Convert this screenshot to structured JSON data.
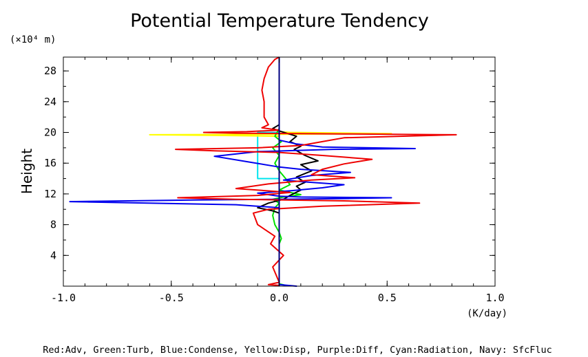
{
  "chart_data": {
    "type": "line",
    "title": "Potential Temperature Tendency",
    "ylabel": "Height",
    "yunits": "(×10⁴ m)",
    "xunits": "(K/day)",
    "xlim": [
      -1.0,
      1.0
    ],
    "ylim": [
      0,
      29.8
    ],
    "xticks": [
      -1.0,
      -0.5,
      0.0,
      0.5,
      1.0
    ],
    "xtick_labels": [
      "-1.0",
      "-0.5",
      "0.0",
      "0.5",
      "1.0"
    ],
    "yticks": [
      4,
      8,
      12,
      16,
      20,
      24,
      28
    ],
    "ytick_labels": [
      "4",
      "8",
      "12",
      "16",
      "20",
      "24",
      "28"
    ],
    "grid": false,
    "legend_text": "Red:Adv, Green:Turb, Blue:Condense, Yellow:Disp, Purple:Diff, Cyan:Radiation, Navy: SfcFluc",
    "series": [
      {
        "name": "Cyan:Radiation",
        "color": "#00e5ee",
        "points": [
          [
            0.0,
            0
          ],
          [
            0.0,
            14.0
          ],
          [
            -0.1,
            14.0
          ],
          [
            -0.1,
            20.0
          ],
          [
            0.0,
            20.0
          ],
          [
            0.0,
            29.8
          ]
        ]
      },
      {
        "name": "Yellow:Disp",
        "color": "#ffff00",
        "points": [
          [
            0.0,
            0
          ],
          [
            0.0,
            19.5
          ],
          [
            -0.25,
            19.6
          ],
          [
            -0.6,
            19.7
          ],
          [
            0.0,
            19.75
          ],
          [
            0.52,
            19.85
          ],
          [
            0.05,
            20.0
          ],
          [
            0.0,
            20.1
          ],
          [
            0.0,
            29.8
          ]
        ]
      },
      {
        "name": "Green:Turb",
        "color": "#00e000",
        "points": [
          [
            0.03,
            0.1
          ],
          [
            0.0,
            0.3
          ],
          [
            0.0,
            5.5
          ],
          [
            0.01,
            6.2
          ],
          [
            0.0,
            7.0
          ],
          [
            -0.02,
            8.0
          ],
          [
            -0.03,
            9.2
          ],
          [
            -0.02,
            10.2
          ],
          [
            0.0,
            10.8
          ],
          [
            -0.03,
            11.3
          ],
          [
            0.02,
            11.6
          ],
          [
            0.1,
            11.9
          ],
          [
            0.0,
            12.5
          ],
          [
            0.05,
            13.2
          ],
          [
            0.03,
            14.0
          ],
          [
            0.0,
            15.0
          ],
          [
            -0.02,
            16.0
          ],
          [
            0.0,
            17.0
          ],
          [
            -0.03,
            18.0
          ],
          [
            0.01,
            18.8
          ],
          [
            -0.02,
            19.5
          ],
          [
            0.0,
            20.5
          ],
          [
            0.0,
            29.8
          ]
        ]
      },
      {
        "name": "Black",
        "color": "#000000",
        "points": [
          [
            0.0,
            0
          ],
          [
            0.0,
            9.5
          ],
          [
            -0.03,
            9.8
          ],
          [
            -0.1,
            10.2
          ],
          [
            -0.05,
            10.8
          ],
          [
            0.02,
            11.3
          ],
          [
            0.05,
            11.8
          ],
          [
            0.1,
            12.5
          ],
          [
            0.08,
            13.0
          ],
          [
            0.12,
            13.5
          ],
          [
            0.08,
            14.2
          ],
          [
            0.15,
            15.0
          ],
          [
            0.1,
            15.8
          ],
          [
            0.18,
            16.3
          ],
          [
            0.12,
            17.0
          ],
          [
            0.07,
            17.8
          ],
          [
            0.1,
            18.2
          ],
          [
            0.05,
            18.8
          ],
          [
            0.08,
            19.5
          ],
          [
            0.0,
            20.2
          ],
          [
            -0.03,
            20.5
          ],
          [
            0.0,
            21.0
          ],
          [
            0.0,
            29.8
          ]
        ]
      },
      {
        "name": "Blue:Condense",
        "color": "#0000ee",
        "points": [
          [
            0.0,
            0.2
          ],
          [
            0.08,
            0.0
          ],
          [
            0.0,
            0.2
          ],
          [
            0.0,
            10.2
          ],
          [
            -0.2,
            10.6
          ],
          [
            -0.97,
            11.0
          ],
          [
            -0.4,
            11.2
          ],
          [
            0.0,
            11.3
          ],
          [
            0.32,
            11.4
          ],
          [
            0.52,
            11.5
          ],
          [
            0.1,
            11.6
          ],
          [
            0.0,
            11.7
          ],
          [
            -0.1,
            12.1
          ],
          [
            0.05,
            12.4
          ],
          [
            0.2,
            12.8
          ],
          [
            0.3,
            13.2
          ],
          [
            0.1,
            13.6
          ],
          [
            0.02,
            13.8
          ],
          [
            0.15,
            14.4
          ],
          [
            0.33,
            14.8
          ],
          [
            0.1,
            15.2
          ],
          [
            0.0,
            15.5
          ],
          [
            -0.15,
            16.2
          ],
          [
            -0.3,
            16.9
          ],
          [
            -0.1,
            17.5
          ],
          [
            0.25,
            17.8
          ],
          [
            0.63,
            17.9
          ],
          [
            0.2,
            18.1
          ],
          [
            0.08,
            18.5
          ],
          [
            0.0,
            19.0
          ],
          [
            0.0,
            29.8
          ]
        ]
      },
      {
        "name": "Red:Adv",
        "color": "#ee0000",
        "points": [
          [
            0.0,
            0.1
          ],
          [
            -0.05,
            0.2
          ],
          [
            0.0,
            0.5
          ],
          [
            -0.03,
            2.5
          ],
          [
            0.02,
            4.0
          ],
          [
            -0.04,
            5.5
          ],
          [
            -0.02,
            6.5
          ],
          [
            -0.1,
            8.0
          ],
          [
            -0.12,
            9.5
          ],
          [
            -0.05,
            10.0
          ],
          [
            0.2,
            10.4
          ],
          [
            0.65,
            10.8
          ],
          [
            0.3,
            11.1
          ],
          [
            -0.2,
            11.3
          ],
          [
            -0.47,
            11.5
          ],
          [
            -0.1,
            11.8
          ],
          [
            0.05,
            12.2
          ],
          [
            -0.2,
            12.7
          ],
          [
            -0.05,
            13.3
          ],
          [
            0.15,
            13.8
          ],
          [
            0.35,
            14.1
          ],
          [
            0.15,
            14.5
          ],
          [
            0.2,
            15.2
          ],
          [
            0.3,
            15.9
          ],
          [
            0.43,
            16.5
          ],
          [
            0.2,
            17.0
          ],
          [
            0.0,
            17.4
          ],
          [
            -0.3,
            17.6
          ],
          [
            -0.48,
            17.8
          ],
          [
            -0.1,
            18.0
          ],
          [
            0.1,
            18.3
          ],
          [
            0.2,
            18.8
          ],
          [
            0.3,
            19.3
          ],
          [
            0.82,
            19.7
          ],
          [
            0.3,
            19.8
          ],
          [
            -0.2,
            19.9
          ],
          [
            -0.35,
            20.0
          ],
          [
            -0.15,
            20.1
          ],
          [
            0.0,
            20.3
          ],
          [
            -0.08,
            20.6
          ],
          [
            -0.05,
            21.0
          ],
          [
            -0.07,
            22.0
          ],
          [
            -0.07,
            24.0
          ],
          [
            -0.08,
            25.5
          ],
          [
            -0.07,
            27.0
          ],
          [
            -0.05,
            28.5
          ],
          [
            -0.02,
            29.5
          ],
          [
            0.0,
            29.8
          ]
        ]
      },
      {
        "name": "Navy: SfcFluc",
        "color": "#000080",
        "points": [
          [
            0.0,
            0
          ],
          [
            0.0,
            29.8
          ]
        ]
      }
    ]
  }
}
